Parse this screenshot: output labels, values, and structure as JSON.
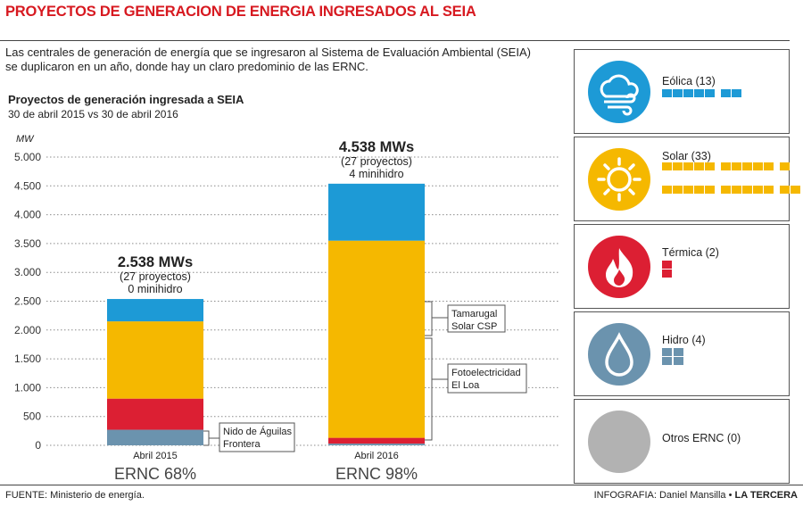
{
  "title": "PROYECTOS DE GENERACION DE ENERGIA INGRESADOS AL SEIA",
  "intro": "Las centrales de generación de energía que se ingresaron al Sistema de Evaluación Ambiental (SEIA) se duplicaron en un año, donde hay un claro predominio de las ERNC.",
  "chart_title": "Proyectos de generación ingresada a SEIA",
  "chart_subtitle": "30 de abril 2015 vs 30 de abril 2016",
  "unit": "MW",
  "footer": {
    "source": "FUENTE: Ministerio de energía.",
    "credit_prefix": "INFOGRAFIA: Daniel Mansilla • ",
    "credit_brand": "LA TERCERA"
  },
  "colors": {
    "eolica": "#1d9ad6",
    "solar": "#f5b800",
    "termica": "#dc1f33",
    "hidro": "#6b93ae",
    "otros": "#b2b2b2",
    "title": "#d71920"
  },
  "chart_data": {
    "type": "bar",
    "stacked": true,
    "categories": [
      "Abril 2015",
      "Abril 2016"
    ],
    "ylim": [
      0,
      5000
    ],
    "yticks": [
      0,
      500,
      1000,
      1500,
      2000,
      2500,
      3000,
      3500,
      4000,
      4500,
      5000
    ],
    "ytick_labels": [
      "0",
      "500",
      "1.000",
      "1.500",
      "2.000",
      "2.500",
      "3.000",
      "3.500",
      "4.000",
      "4.500",
      "5.000"
    ],
    "series": [
      {
        "key": "hidro",
        "values": [
          270,
          30
        ]
      },
      {
        "key": "termica",
        "values": [
          540,
          100
        ]
      },
      {
        "key": "solar",
        "values": [
          1340,
          3420
        ]
      },
      {
        "key": "eolica",
        "values": [
          388,
          988
        ]
      }
    ],
    "totals": [
      "2.538 MWs",
      "4.538 MWs"
    ],
    "subs": [
      [
        "(27 proyectos)",
        "0 minihidro"
      ],
      [
        "(27 proyectos)",
        "4 minihidro"
      ]
    ],
    "ernc": [
      "ERNC 68%",
      "ERNC 98%"
    ],
    "callouts": {
      "nido": [
        "Nido de Águilas",
        "Frontera"
      ],
      "tamarugal": [
        "Tamarugal",
        "Solar CSP"
      ],
      "foto": [
        "Fotoelectricidad",
        "El Loa"
      ]
    }
  },
  "legend": [
    {
      "key": "eolica",
      "label": "Eólica (13)",
      "icon": "wind-cloud-icon",
      "count": 13
    },
    {
      "key": "solar",
      "label": "Solar (33)",
      "icon": "sun-icon",
      "count": 33
    },
    {
      "key": "termica",
      "label": "Térmica (2)",
      "icon": "flame-icon",
      "count": 2
    },
    {
      "key": "hidro",
      "label": "Hidro (4)",
      "icon": "water-drop-icon",
      "count": 4
    },
    {
      "key": "otros",
      "label": "Otros ERNC (0)",
      "icon": "blank-circle-icon",
      "count": 0
    }
  ]
}
